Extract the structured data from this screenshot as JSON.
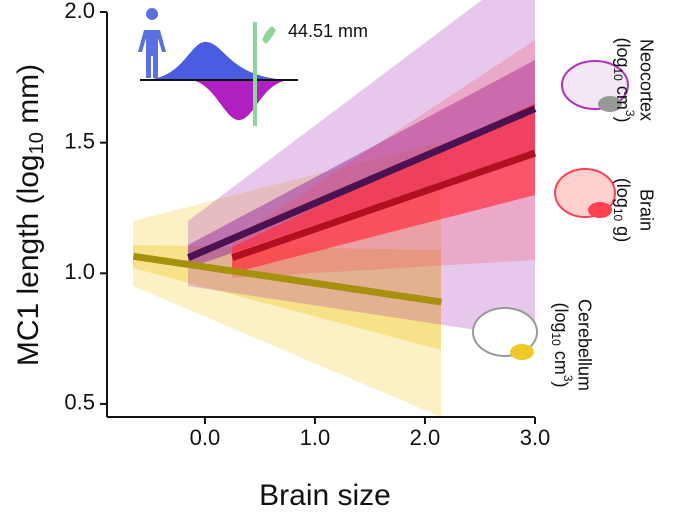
{
  "chart_data": {
    "type": "line",
    "x_label": "Brain size",
    "y_label": [
      "MC1 length (log",
      "10",
      " mm)"
    ],
    "annotation": "44.51 mm",
    "xlim": [
      -0.89,
      3.0
    ],
    "ylim": [
      0.45,
      2.0
    ],
    "xticks": [
      {
        "value": 0,
        "label": "0.0"
      },
      {
        "value": 1,
        "label": "1.0"
      },
      {
        "value": 2,
        "label": "2.0"
      },
      {
        "value": 3,
        "label": "3.0"
      }
    ],
    "yticks": [
      0.5,
      {
        "value": 1,
        "label": "1.0"
      },
      1.5,
      {
        "value": 2,
        "label": "2.0"
      }
    ],
    "series": [
      {
        "name": "Cerebellum",
        "unit": [
          "(log",
          "10",
          " cm",
          "3",
          ")"
        ],
        "color": "#a8900f",
        "x": [
          -0.65,
          2.15
        ],
        "values": [
          1.065,
          0.89
        ]
      },
      {
        "name": "Neocortex",
        "unit": [
          "(log",
          "10",
          " cm",
          "3",
          ")"
        ],
        "color": "#4a1250",
        "x": [
          -0.15,
          3.0
        ],
        "values": [
          1.06,
          1.63
        ]
      },
      {
        "name": "Brain",
        "unit": [
          "(log",
          "10",
          " g",
          "",
          ")"
        ],
        "color": "#b01020",
        "x": [
          0.25,
          3.0
        ],
        "values": [
          1.06,
          1.46
        ]
      }
    ]
  }
}
